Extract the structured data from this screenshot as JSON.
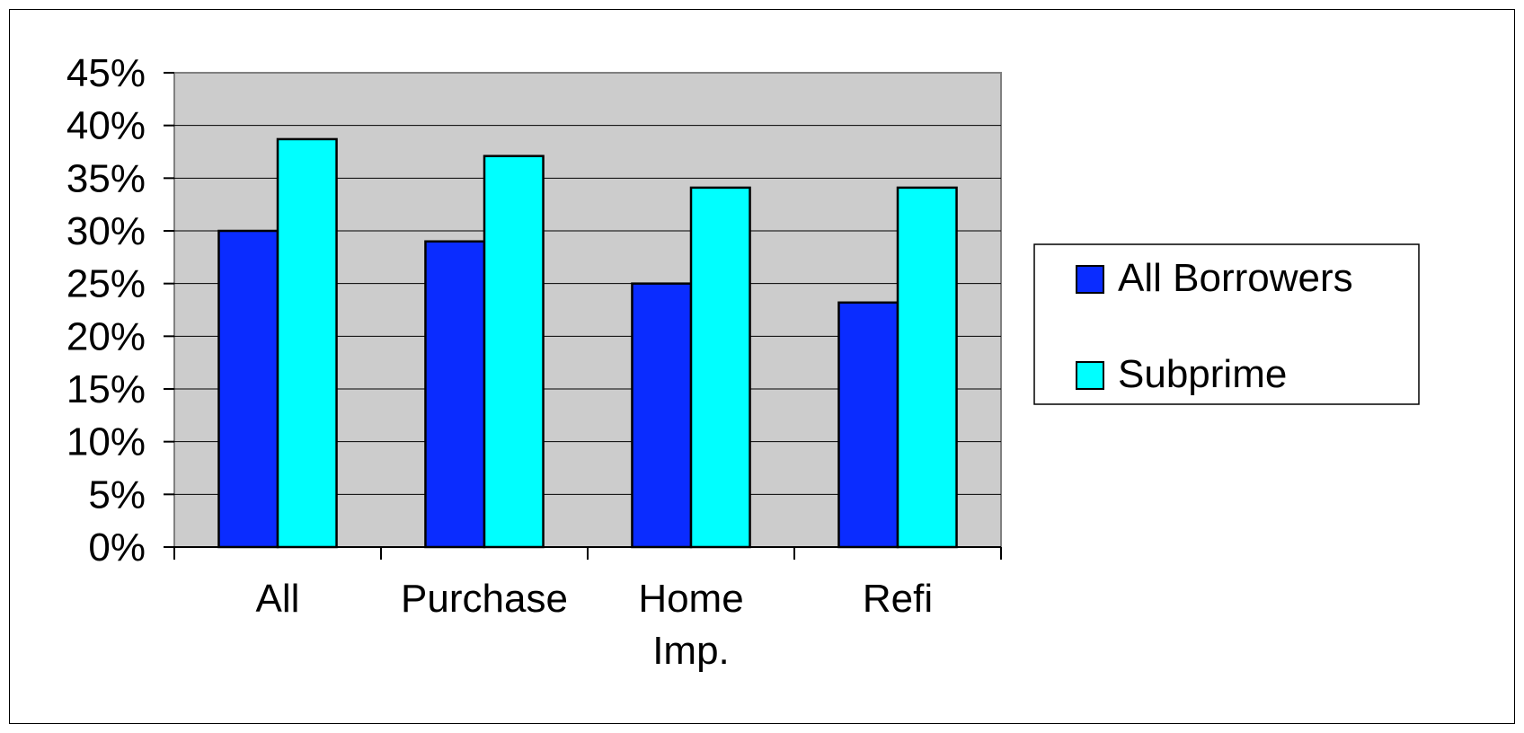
{
  "chart_data": {
    "type": "bar",
    "categories": [
      "All",
      "Purchase",
      "Home Imp.",
      "Refi"
    ],
    "series": [
      {
        "name": "All Borrowers",
        "values": [
          30,
          29,
          25,
          23.2
        ]
      },
      {
        "name": "Subprime",
        "values": [
          38.7,
          37.1,
          34.1,
          34.1
        ]
      }
    ],
    "ylim": [
      0,
      45
    ],
    "y_ticks": [
      "0%",
      "5%",
      "10%",
      "15%",
      "20%",
      "25%",
      "30%",
      "35%",
      "40%",
      "45%"
    ],
    "y_tick_values": [
      0,
      5,
      10,
      15,
      20,
      25,
      30,
      35,
      40,
      45
    ],
    "title": "",
    "xlabel": "",
    "ylabel": "",
    "grid": true,
    "legend_position": "right",
    "colors": {
      "plot_background": "#cccccc",
      "series": [
        "#0a2cff",
        "#00ffff"
      ],
      "gridline": "#000000",
      "bar_outline": "#000000"
    }
  }
}
